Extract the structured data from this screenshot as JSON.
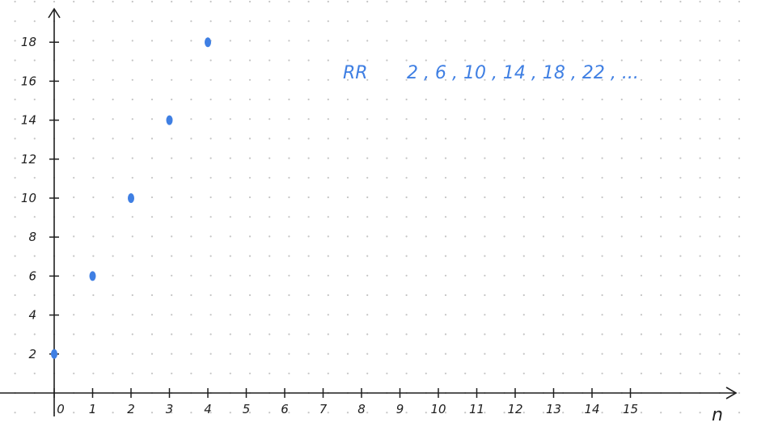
{
  "chart_data": {
    "type": "scatter",
    "x": [
      0,
      1,
      2,
      3,
      4
    ],
    "y": [
      2,
      6,
      10,
      14,
      18
    ],
    "xlabel": "n",
    "ylabel": "",
    "xlim": [
      0,
      15
    ],
    "ylim": [
      0,
      18
    ],
    "x_ticks": [
      "0",
      "1",
      "2",
      "3",
      "4",
      "5",
      "6",
      "7",
      "8",
      "9",
      "10",
      "11",
      "12",
      "13",
      "14",
      "15"
    ],
    "y_ticks": [
      "2",
      "4",
      "6",
      "8",
      "10",
      "12",
      "14",
      "16",
      "18"
    ],
    "grid": "dotted",
    "annotation": {
      "label": "RR",
      "sequence": "2 , 6 , 10 , 14 , 18 , 22 , ..."
    }
  },
  "colors": {
    "points": "#3f7fe3",
    "axes": "#1f1f1f",
    "grid_dots": "#c4c4c4",
    "annotation": "#3f7fe3"
  }
}
